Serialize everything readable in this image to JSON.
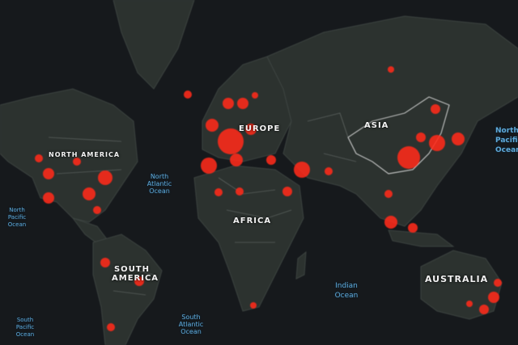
{
  "continents": {
    "north_america": "NORTH AMERICA",
    "europe": "EUROPE",
    "asia": "ASIA",
    "africa": "AFRICA",
    "south_america": "SOUTH AMERICA",
    "australia": "AUSTRALIA"
  },
  "oceans": {
    "north_atlantic": "North Atlantic Ocean",
    "south_atlantic": "South Atlantic Ocean",
    "indian": "Indian Ocean",
    "north_pacific_left": "North Pacific Ocean",
    "south_pacific": "South Pacific Ocean",
    "north_pacific_right": "North Pacific Ocean"
  },
  "colors": {
    "background": "#16191c",
    "land": "#2c322f",
    "marker": "#ff2a1a",
    "ocean_label": "#5fa8d8"
  }
}
